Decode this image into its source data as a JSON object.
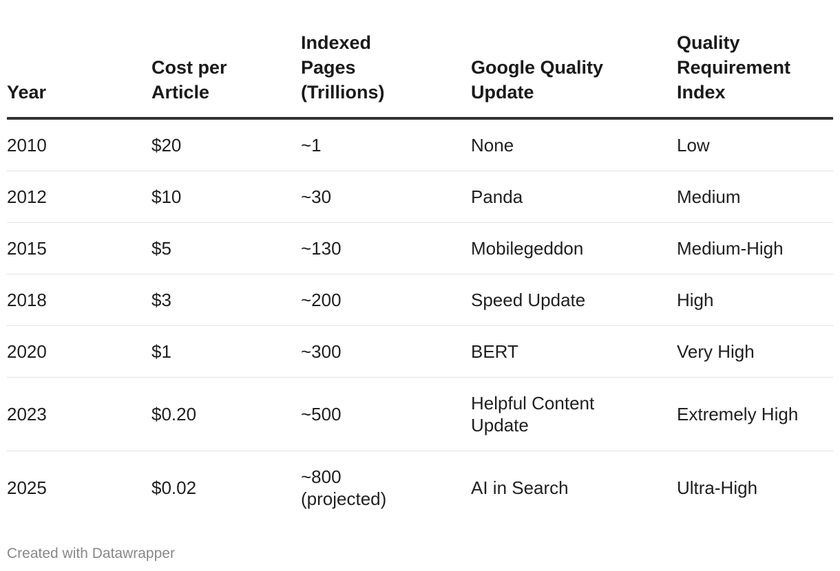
{
  "chart_data": {
    "type": "table",
    "columns": [
      "Year",
      "Cost per\nArticle",
      "Indexed\nPages\n(Trillions)",
      "Google Quality\nUpdate",
      "Quality\nRequirement\nIndex"
    ],
    "rows": [
      [
        "2010",
        "$20",
        "~1",
        "None",
        "Low"
      ],
      [
        "2012",
        "$10",
        "~30",
        "Panda",
        "Medium"
      ],
      [
        "2015",
        "$5",
        "~130",
        "Mobilegeddon",
        "Medium-High"
      ],
      [
        "2018",
        "$3",
        "~200",
        "Speed Update",
        "High"
      ],
      [
        "2020",
        "$1",
        "~300",
        "BERT",
        "Very High"
      ],
      [
        "2023",
        "$0.20",
        "~500",
        "Helpful Content\nUpdate",
        "Extremely High"
      ],
      [
        "2025",
        "$0.02",
        "~800\n(projected)",
        "AI in Search",
        "Ultra-High"
      ]
    ]
  },
  "footer": {
    "credit": "Created with Datawrapper"
  }
}
